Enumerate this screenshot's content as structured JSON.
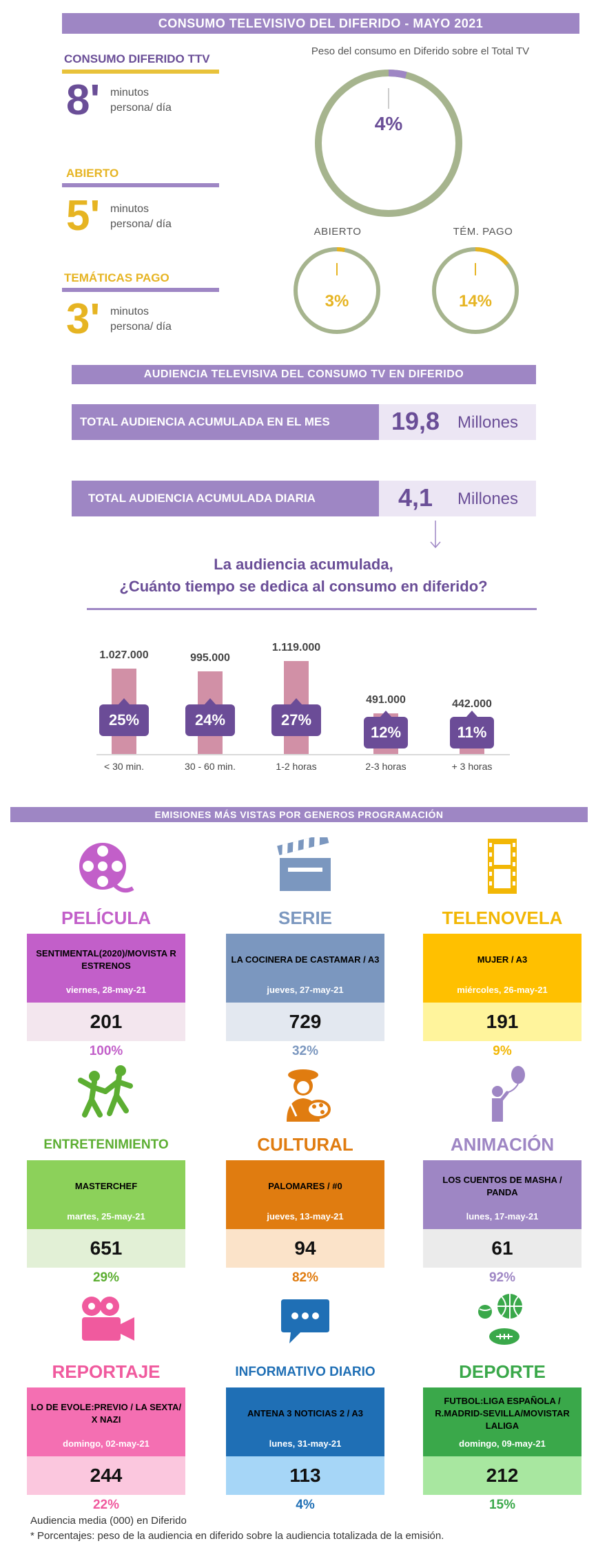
{
  "header": {
    "title": "CONSUMO TELEVISIVO DEL DIFERIDO - MAYO 2021"
  },
  "consumption": [
    {
      "title": "CONSUMO DIFERIDO TTV",
      "minutes": "8'",
      "unit_line1": "minutos",
      "unit_line2": "persona/ día",
      "title_color": "#6a4e97",
      "line_color": "#e8c23a",
      "num_color": "#6a4e97"
    },
    {
      "title": "ABIERTO",
      "minutes": "5'",
      "unit_line1": "minutos",
      "unit_line2": "persona/ día",
      "title_color": "#e6b422",
      "line_color": "#9e86c4",
      "num_color": "#e6b422"
    },
    {
      "title": "TEMÁTICAS PAGO",
      "minutes": "3'",
      "unit_line1": "minutos",
      "unit_line2": "persona/ día",
      "title_color": "#e6b422",
      "line_color": "#9e86c4",
      "num_color": "#e6b422"
    }
  ],
  "rings": {
    "caption": "Peso del consumo en Diferido sobre el Total TV",
    "total": {
      "pct": "4%",
      "fraction": 0.04,
      "color": "#9e86c4"
    },
    "abierto": {
      "label": "ABIERTO",
      "pct": "3%",
      "fraction": 0.03,
      "color": "#e6b422"
    },
    "pago": {
      "label": "TÉM. PAGO",
      "pct": "14%",
      "fraction": 0.14,
      "color": "#e6b422"
    },
    "track_color": "#a6b48e"
  },
  "audience": {
    "title": "AUDIENCIA TELEVISIVA DEL CONSUMO TV EN DIFERIDO",
    "monthly": {
      "label": "TOTAL AUDIENCIA ACUMULADA EN EL MES",
      "value": "19,8",
      "unit": "Millones"
    },
    "daily": {
      "label": "TOTAL AUDIENCIA ACUMULADA DIARIA",
      "value": "4,1",
      "unit": "Millones"
    }
  },
  "question": {
    "line1": "La audiencia acumulada,",
    "line2": "¿Cuánto tiempo se dedica al consumo en diferido?"
  },
  "chart_data": {
    "type": "bar",
    "categories": [
      "< 30 min.",
      "30 - 60 min.",
      "1-2 horas",
      "2-3 horas",
      "+ 3 horas"
    ],
    "values": [
      1027000,
      995000,
      1119000,
      491000,
      442000
    ],
    "value_labels": [
      "1.027.000",
      "995.000",
      "1.119.000",
      "491.000",
      "442.000"
    ],
    "pct_labels": [
      "25%",
      "24%",
      "27%",
      "12%",
      "11%"
    ],
    "title": "",
    "xlabel": "",
    "ylabel": "",
    "ylim": [
      0,
      1119000
    ]
  },
  "genres_header": {
    "title": "EMISIONES MÁS VISTAS POR GENEROS PROGRAMACIÓN"
  },
  "genres": [
    {
      "name": "PELÍCULA",
      "icon": "film-reel-icon",
      "program": "SENTIMENTAL(2020)/MOVISTA R ESTRENOS",
      "date": "viernes, 28-may-21",
      "value": "201",
      "pct": "100%",
      "color": "#c25fc9",
      "box": "#c25fc9",
      "valbg": "#f3e6ee",
      "pctcolor": "#c25fc9"
    },
    {
      "name": "SERIE",
      "icon": "clapperboard-icon",
      "program": "LA COCINERA DE CASTAMAR / A3",
      "date": "jueves, 27-may-21",
      "value": "729",
      "pct": "32%",
      "color": "#7b97bf",
      "box": "#7b97bf",
      "valbg": "#e3e8f0",
      "pctcolor": "#7b97bf"
    },
    {
      "name": "TELENOVELA",
      "icon": "film-strip-icon",
      "program": "MUJER / A3",
      "date": "miércoles, 26-may-21",
      "value": "191",
      "pct": "9%",
      "color": "#f2b705",
      "box": "#ffc000",
      "valbg": "#fff49c",
      "pctcolor": "#f2b705"
    },
    {
      "name": "ENTRETENIMIENTO",
      "icon": "dancing-people-icon",
      "program": "MASTERCHEF",
      "date": "martes, 25-may-21",
      "value": "651",
      "pct": "29%",
      "color": "#5cae32",
      "box": "#8cd15a",
      "valbg": "#e2f0d6",
      "pctcolor": "#5cae32"
    },
    {
      "name": "CULTURAL",
      "icon": "painter-icon",
      "program": "PALOMARES / #0",
      "date": "jueves, 13-may-21",
      "value": "94",
      "pct": "82%",
      "color": "#e07c10",
      "box": "#e07c10",
      "valbg": "#fbe3c9",
      "pctcolor": "#e07c10"
    },
    {
      "name": "ANIMACIÓN",
      "icon": "balloon-child-icon",
      "program": "LOS CUENTOS DE MASHA / PANDA",
      "date": "lunes, 17-may-21",
      "value": "61",
      "pct": "92%",
      "color": "#9e86c4",
      "box": "#9e86c4",
      "valbg": "#ebebeb",
      "pctcolor": "#9e86c4"
    },
    {
      "name": "REPORTAJE",
      "icon": "movie-camera-icon",
      "program": "LO DE EVOLE:PREVIO / LA SEXTA/ X NAZI",
      "date": "domingo, 02-may-21",
      "value": "244",
      "pct": "22%",
      "color": "#f05a9e",
      "box": "#f46fb2",
      "valbg": "#fbc7de",
      "pctcolor": "#f05a9e"
    },
    {
      "name": "INFORMATIVO DIARIO",
      "icon": "speech-bubble-icon",
      "program": "ANTENA 3 NOTICIAS 2 / A3",
      "date": "lunes, 31-may-21",
      "value": "113",
      "pct": "4%",
      "color": "#1f6fb5",
      "box": "#1f6fb5",
      "valbg": "#a6d6f7",
      "pctcolor": "#1f6fb5"
    },
    {
      "name": "DEPORTE",
      "icon": "sports-balls-icon",
      "program": "FUTBOL:LIGA ESPAÑOLA / R.MADRID-SEVILLA/MOVISTAR LALIGA",
      "date": "domingo, 09-may-21",
      "value": "212",
      "pct": "15%",
      "color": "#3aa84a",
      "box": "#3aa84a",
      "valbg": "#a8e7a0",
      "pctcolor": "#3aa84a"
    }
  ],
  "footnotes": {
    "line1": "Audiencia media (000) en Diferido",
    "line2": "* Porcentajes: peso de la audiencia en diferido sobre la audiencia totalizada de la emisión."
  }
}
